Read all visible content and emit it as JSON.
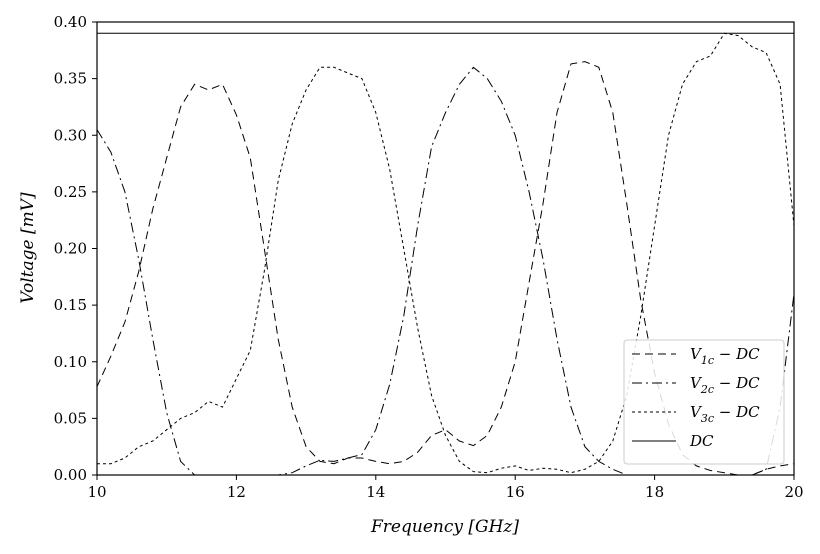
{
  "chart_data": {
    "type": "line",
    "title": "",
    "xlabel": "Frequency [GHz]",
    "ylabel": "Voltage [mV]",
    "xlim": [
      10,
      20
    ],
    "ylim": [
      0,
      0.4
    ],
    "x_ticks": [
      "10",
      "12",
      "14",
      "16",
      "18",
      "20"
    ],
    "y_ticks": [
      "0.00",
      "0.05",
      "0.10",
      "0.15",
      "0.20",
      "0.25",
      "0.30",
      "0.35",
      "0.40"
    ],
    "grid": false,
    "legend_position": "lower-right",
    "series": [
      {
        "name": "V1c − DC",
        "legend_main": "V",
        "legend_sub": "1c",
        "legend_tail": " − DC",
        "dash": "8,5",
        "x": [
          10,
          10.2,
          10.4,
          10.6,
          10.8,
          11.0,
          11.2,
          11.4,
          11.6,
          11.8,
          12.0,
          12.2,
          12.4,
          12.6,
          12.8,
          13.0,
          13.2,
          13.4,
          13.6,
          13.8,
          14.0,
          14.2,
          14.4,
          14.6,
          14.8,
          15.0,
          15.2,
          15.4,
          15.6,
          15.8,
          16.0,
          16.2,
          16.4,
          16.6,
          16.8,
          17.0,
          17.2,
          17.4,
          17.6,
          17.8,
          18.0,
          18.2,
          18.4,
          18.6,
          18.8,
          19.0,
          19.2,
          19.4,
          19.6,
          19.8,
          20.0
        ],
        "values": [
          0.078,
          0.105,
          0.135,
          0.18,
          0.235,
          0.28,
          0.325,
          0.345,
          0.34,
          0.345,
          0.318,
          0.28,
          0.2,
          0.12,
          0.06,
          0.025,
          0.012,
          0.01,
          0.015,
          0.015,
          0.012,
          0.01,
          0.012,
          0.02,
          0.035,
          0.04,
          0.03,
          0.026,
          0.035,
          0.06,
          0.1,
          0.17,
          0.24,
          0.32,
          0.363,
          0.365,
          0.36,
          0.32,
          0.24,
          0.155,
          0.09,
          0.045,
          0.018,
          0.008,
          0.004,
          0.002,
          0.0,
          0.0,
          0.005,
          0.008,
          0.01
        ]
      },
      {
        "name": "V2c − DC",
        "legend_main": "V",
        "legend_sub": "2c",
        "legend_tail": " − DC",
        "dash": "10,4,2,4",
        "x": [
          10,
          10.2,
          10.4,
          10.6,
          10.8,
          11.0,
          11.2,
          11.4,
          11.6,
          11.8,
          12.0,
          12.2,
          12.4,
          12.6,
          12.8,
          13.0,
          13.2,
          13.4,
          13.6,
          13.8,
          14.0,
          14.2,
          14.4,
          14.6,
          14.8,
          15.0,
          15.2,
          15.4,
          15.6,
          15.8,
          16.0,
          16.2,
          16.4,
          16.6,
          16.8,
          17.0,
          17.2,
          17.4,
          17.6,
          17.8,
          18.0,
          18.2,
          18.4,
          18.6,
          18.8,
          19.0,
          19.2,
          19.4,
          19.6,
          19.8,
          20.0
        ],
        "values": [
          0.305,
          0.285,
          0.25,
          0.19,
          0.12,
          0.055,
          0.012,
          0.0,
          0.0,
          0.0,
          0.0,
          0.0,
          0.0,
          0.0,
          0.002,
          0.008,
          0.013,
          0.012,
          0.015,
          0.018,
          0.04,
          0.08,
          0.14,
          0.22,
          0.29,
          0.32,
          0.345,
          0.36,
          0.35,
          0.33,
          0.3,
          0.25,
          0.19,
          0.12,
          0.06,
          0.025,
          0.012,
          0.005,
          0.0,
          0.0,
          0.0,
          0.0,
          0.0,
          0.0,
          0.0,
          0.0,
          0.0,
          0.0,
          0.005,
          0.06,
          0.16
        ]
      },
      {
        "name": "V3c − DC",
        "legend_main": "V",
        "legend_sub": "3c",
        "legend_tail": " − DC",
        "dash": "3,3",
        "x": [
          10,
          10.2,
          10.4,
          10.6,
          10.8,
          11.0,
          11.2,
          11.4,
          11.6,
          11.8,
          12.0,
          12.2,
          12.4,
          12.6,
          12.8,
          13.0,
          13.2,
          13.4,
          13.6,
          13.8,
          14.0,
          14.2,
          14.4,
          14.6,
          14.8,
          15.0,
          15.2,
          15.4,
          15.6,
          15.8,
          16.0,
          16.2,
          16.4,
          16.6,
          16.8,
          17.0,
          17.2,
          17.4,
          17.6,
          17.8,
          18.0,
          18.2,
          18.4,
          18.6,
          18.8,
          19.0,
          19.2,
          19.4,
          19.6,
          19.8,
          20.0
        ],
        "values": [
          0.01,
          0.01,
          0.015,
          0.025,
          0.03,
          0.04,
          0.05,
          0.055,
          0.065,
          0.06,
          0.085,
          0.11,
          0.18,
          0.26,
          0.31,
          0.34,
          0.36,
          0.36,
          0.355,
          0.35,
          0.32,
          0.27,
          0.2,
          0.13,
          0.07,
          0.035,
          0.012,
          0.003,
          0.002,
          0.006,
          0.008,
          0.004,
          0.006,
          0.005,
          0.002,
          0.005,
          0.012,
          0.03,
          0.07,
          0.14,
          0.22,
          0.3,
          0.345,
          0.365,
          0.37,
          0.39,
          0.388,
          0.378,
          0.373,
          0.345,
          0.22
        ]
      },
      {
        "name": "DC",
        "legend_main": "DC",
        "legend_sub": "",
        "legend_tail": "",
        "dash": "",
        "x": [
          10,
          20
        ],
        "values": [
          0.39,
          0.39
        ]
      }
    ]
  }
}
